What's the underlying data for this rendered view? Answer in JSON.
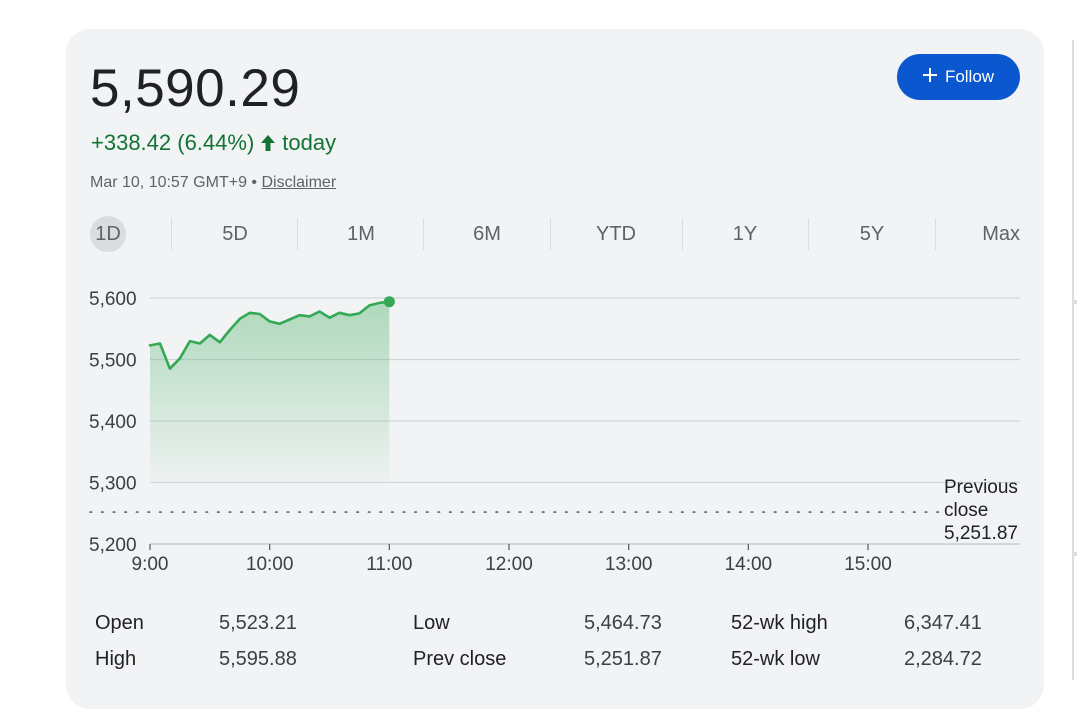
{
  "quote": {
    "price": "5,590.29",
    "change": "+338.42 (6.44%)",
    "change_suffix": "today",
    "timestamp": "Mar 10, 10:57 GMT+9",
    "separator": "•",
    "disclaimer_label": "Disclaimer",
    "up_color": "#137333"
  },
  "follow_button": {
    "label": "Follow",
    "icon": "plus-icon",
    "color": "#0b57d0"
  },
  "ranges": [
    {
      "label": "1D",
      "active": true
    },
    {
      "label": "5D",
      "active": false
    },
    {
      "label": "1M",
      "active": false
    },
    {
      "label": "6M",
      "active": false
    },
    {
      "label": "YTD",
      "active": false
    },
    {
      "label": "1Y",
      "active": false
    },
    {
      "label": "5Y",
      "active": false
    },
    {
      "label": "Max",
      "active": false
    }
  ],
  "chart_data": {
    "type": "area",
    "series": [
      {
        "times": [
          "9:00",
          "9:05",
          "9:10",
          "9:15",
          "9:20",
          "9:25",
          "9:30",
          "9:35",
          "9:40",
          "9:45",
          "9:50",
          "9:55",
          "10:00",
          "10:05",
          "10:10",
          "10:15",
          "10:20",
          "10:25",
          "10:30",
          "10:35",
          "10:40",
          "10:45",
          "10:50",
          "10:55",
          "11:00"
        ],
        "values": [
          5523,
          5526,
          5485,
          5502,
          5530,
          5526,
          5540,
          5528,
          5548,
          5566,
          5576,
          5574,
          5562,
          5558,
          5565,
          5572,
          5570,
          5578,
          5568,
          5576,
          5572,
          5575,
          5588,
          5592,
          5594
        ]
      }
    ],
    "x_ticks": [
      "9:00",
      "10:00",
      "11:00",
      "12:00",
      "13:00",
      "14:00",
      "15:00"
    ],
    "x_range": [
      "9:00",
      "16:15"
    ],
    "y_ticks": [
      "5,600",
      "5,500",
      "5,400",
      "5,300",
      "5,200"
    ],
    "y_tick_values": [
      5600,
      5500,
      5400,
      5300,
      5200
    ],
    "ylim": [
      5200,
      5600
    ],
    "reference_line": {
      "label_lines": [
        "Previous",
        "close",
        "5,251.87"
      ],
      "value": 5251.87
    },
    "line_color": "#34a853",
    "grid": true
  },
  "stats": [
    {
      "label": "Open",
      "value": "5,523.21"
    },
    {
      "label": "High",
      "value": "5,595.88"
    },
    {
      "label": "Low",
      "value": "5,464.73"
    },
    {
      "label": "Prev close",
      "value": "5,251.87"
    },
    {
      "label": "52-wk high",
      "value": "6,347.41"
    },
    {
      "label": "52-wk low",
      "value": "2,284.72"
    }
  ]
}
